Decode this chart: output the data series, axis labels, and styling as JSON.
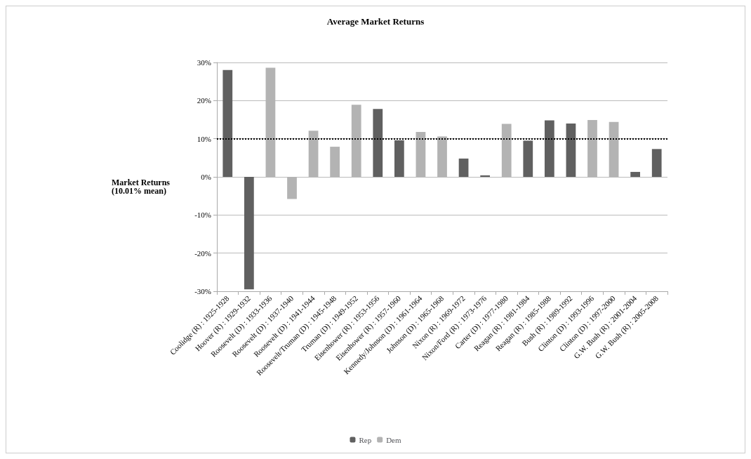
{
  "chart_data": {
    "type": "bar",
    "title": "Average Market Returns",
    "ylabel": "Market Returns\n(10.01% mean)",
    "categories": [
      "Coolidge (R) : 1925-1928",
      "Hoover (R) : 1929-1932",
      "Roosevelt (D) : 1933-1936",
      "Roosevelt (D) : 1937-1940",
      "Roosevelt (D) : 1941-1944",
      "Roosevelt/Truman (D) : 1945-1948",
      "Truman (D) : 1949-1952",
      "Eisenhower (R) : 1953-1956",
      "Eisenhower (R) : 1957-1960",
      "Kennedy/Johnson (D) : 1961-1964",
      "Johnson (D) : 1965-1968",
      "Nixon (R) : 1969-1972",
      "Nixon/Ford (R) : 1973-1976",
      "Carter (D) : 1977-1980",
      "Reagan (R) : 1981-1984",
      "Reagan (R) : 1985-1988",
      "Bush (R) : 1989-1992",
      "Clinton (D) : 1993-1996",
      "Clinton (D) : 1997-2000",
      "G.W. Bush (R) : 2001-2004",
      "G.W. Bush (R) : 2005-2008"
    ],
    "series": [
      {
        "name": "Rep",
        "color": "#606060",
        "values": [
          28.0,
          -29.5,
          null,
          null,
          null,
          null,
          null,
          17.8,
          9.6,
          null,
          null,
          4.8,
          0.4,
          null,
          9.5,
          14.8,
          14.0,
          null,
          null,
          1.3,
          7.3
        ]
      },
      {
        "name": "Dem",
        "color": "#b3b3b3",
        "values": [
          null,
          null,
          28.6,
          -5.8,
          12.1,
          7.9,
          18.9,
          null,
          null,
          11.8,
          10.6,
          null,
          null,
          13.9,
          null,
          null,
          null,
          14.9,
          14.4,
          null,
          null
        ]
      }
    ],
    "ylim": [
      -30,
      30
    ],
    "yticks": [
      {
        "value": -30,
        "label": "-30%"
      },
      {
        "value": -20,
        "label": "-20%"
      },
      {
        "value": -10,
        "label": "-10%"
      },
      {
        "value": 0,
        "label": "0%"
      },
      {
        "value": 10,
        "label": "10%"
      },
      {
        "value": 20,
        "label": "20%"
      },
      {
        "value": 30,
        "label": "30%"
      }
    ],
    "ref_lines": [
      {
        "axis": "y",
        "value": 10.01,
        "color": "#000000",
        "line_style": "dotted"
      }
    ],
    "grid": "y",
    "legend": "bottom"
  }
}
